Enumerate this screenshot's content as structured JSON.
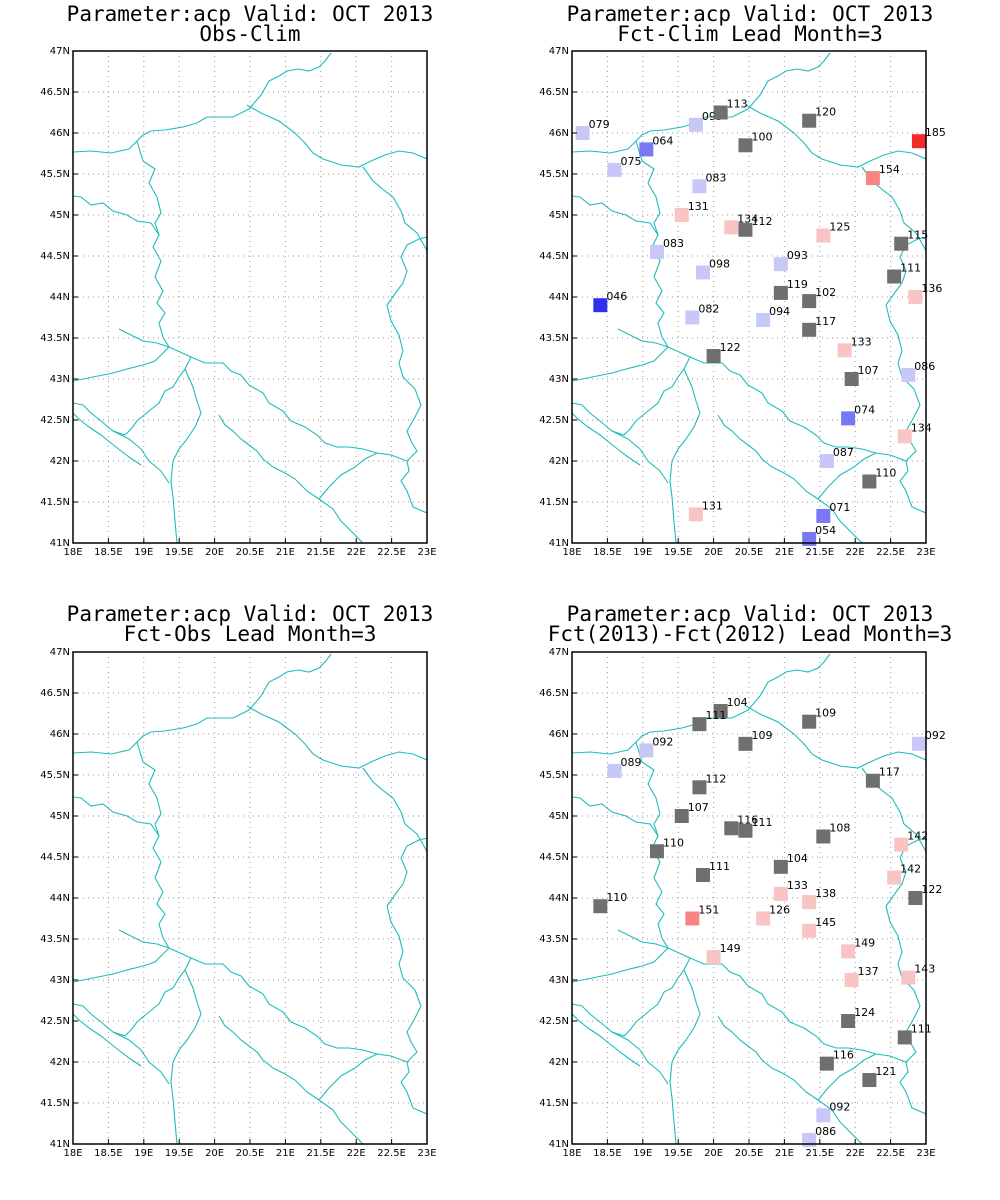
{
  "colors": {
    "border_line": "#1fbcbc",
    "grid": "#9a9a9a",
    "neutral": "#6f6f6f",
    "above_weak": "#f8c4c4",
    "above_mid": "#f88484",
    "above_strong": "#f42a2a",
    "below_weak": "#c8c8f8",
    "below_mid": "#7878f4",
    "below_strong": "#3030f0"
  },
  "axes": {
    "lon_ticks": [
      "18E",
      "18.5E",
      "19E",
      "19.5E",
      "20E",
      "20.5E",
      "21E",
      "21.5E",
      "22E",
      "22.5E",
      "23E"
    ],
    "lat_ticks": [
      "41N",
      "41.5N",
      "42N",
      "42.5N",
      "43N",
      "43.5N",
      "44N",
      "44.5N",
      "45N",
      "45.5N",
      "46N",
      "46.5N",
      "47N"
    ],
    "lon_range": [
      18,
      23
    ],
    "lat_range": [
      41,
      47
    ]
  },
  "panels": [
    {
      "id": "top-left",
      "title_line1": "Parameter:acp Valid: OCT 2013",
      "title_line2": "Obs-Clim",
      "stations": []
    },
    {
      "id": "top-right",
      "title_line1": "Parameter:acp Valid: OCT 2013",
      "title_line2": "Fct-Clim Lead Month=3",
      "stations": [
        {
          "lon": 18.15,
          "lat": 46.0,
          "label": "079",
          "cls": "below_weak"
        },
        {
          "lon": 18.6,
          "lat": 45.55,
          "label": "075",
          "cls": "below_weak"
        },
        {
          "lon": 19.05,
          "lat": 45.8,
          "label": "064",
          "cls": "below_mid"
        },
        {
          "lon": 19.75,
          "lat": 46.1,
          "label": "095",
          "cls": "below_weak"
        },
        {
          "lon": 20.1,
          "lat": 46.25,
          "label": "113",
          "cls": "neutral"
        },
        {
          "lon": 20.45,
          "lat": 45.85,
          "label": "100",
          "cls": "neutral"
        },
        {
          "lon": 21.35,
          "lat": 46.15,
          "label": "120",
          "cls": "neutral"
        },
        {
          "lon": 22.9,
          "lat": 45.9,
          "label": "185",
          "cls": "above_strong"
        },
        {
          "lon": 19.8,
          "lat": 45.35,
          "label": "083",
          "cls": "below_weak"
        },
        {
          "lon": 22.25,
          "lat": 45.45,
          "label": "154",
          "cls": "above_mid"
        },
        {
          "lon": 19.55,
          "lat": 45.0,
          "label": "131",
          "cls": "above_weak"
        },
        {
          "lon": 20.25,
          "lat": 44.85,
          "label": "134",
          "cls": "above_weak"
        },
        {
          "lon": 20.45,
          "lat": 44.82,
          "label": "112",
          "cls": "neutral"
        },
        {
          "lon": 21.55,
          "lat": 44.75,
          "label": "125",
          "cls": "above_weak"
        },
        {
          "lon": 22.65,
          "lat": 44.65,
          "label": "115",
          "cls": "neutral"
        },
        {
          "lon": 19.2,
          "lat": 44.55,
          "label": "083",
          "cls": "below_weak"
        },
        {
          "lon": 19.85,
          "lat": 44.3,
          "label": "098",
          "cls": "below_weak"
        },
        {
          "lon": 20.95,
          "lat": 44.4,
          "label": "093",
          "cls": "below_weak"
        },
        {
          "lon": 22.55,
          "lat": 44.25,
          "label": "111",
          "cls": "neutral"
        },
        {
          "lon": 20.95,
          "lat": 44.05,
          "label": "119",
          "cls": "neutral"
        },
        {
          "lon": 21.35,
          "lat": 43.95,
          "label": "102",
          "cls": "neutral"
        },
        {
          "lon": 22.85,
          "lat": 44.0,
          "label": "136",
          "cls": "above_weak"
        },
        {
          "lon": 18.4,
          "lat": 43.9,
          "label": "046",
          "cls": "below_strong"
        },
        {
          "lon": 19.7,
          "lat": 43.75,
          "label": "082",
          "cls": "below_weak"
        },
        {
          "lon": 20.7,
          "lat": 43.72,
          "label": "094",
          "cls": "below_weak"
        },
        {
          "lon": 21.35,
          "lat": 43.6,
          "label": "117",
          "cls": "neutral"
        },
        {
          "lon": 21.85,
          "lat": 43.35,
          "label": "133",
          "cls": "above_weak"
        },
        {
          "lon": 20.0,
          "lat": 43.28,
          "label": "122",
          "cls": "neutral"
        },
        {
          "lon": 21.95,
          "lat": 43.0,
          "label": "107",
          "cls": "neutral"
        },
        {
          "lon": 22.75,
          "lat": 43.05,
          "label": "086",
          "cls": "below_weak"
        },
        {
          "lon": 21.9,
          "lat": 42.52,
          "label": "074",
          "cls": "below_mid"
        },
        {
          "lon": 22.7,
          "lat": 42.3,
          "label": "134",
          "cls": "above_weak"
        },
        {
          "lon": 21.6,
          "lat": 42.0,
          "label": "087",
          "cls": "below_weak"
        },
        {
          "lon": 22.2,
          "lat": 41.75,
          "label": "110",
          "cls": "neutral"
        },
        {
          "lon": 19.75,
          "lat": 41.35,
          "label": "131",
          "cls": "above_weak"
        },
        {
          "lon": 21.55,
          "lat": 41.33,
          "label": "071",
          "cls": "below_mid"
        },
        {
          "lon": 21.35,
          "lat": 41.05,
          "label": "054",
          "cls": "below_mid"
        }
      ]
    },
    {
      "id": "bottom-left",
      "title_line1": "Parameter:acp Valid: OCT 2013",
      "title_line2": "Fct-Obs Lead Month=3",
      "stations": []
    },
    {
      "id": "bottom-right",
      "title_line1": "Parameter:acp Valid: OCT 2013",
      "title_line2": "Fct(2013)-Fct(2012) Lead Month=3",
      "stations": [
        {
          "lon": 20.1,
          "lat": 46.28,
          "label": "104",
          "cls": "neutral"
        },
        {
          "lon": 19.8,
          "lat": 46.12,
          "label": "111",
          "cls": "neutral"
        },
        {
          "lon": 21.35,
          "lat": 46.15,
          "label": "109",
          "cls": "neutral"
        },
        {
          "lon": 20.45,
          "lat": 45.88,
          "label": "109",
          "cls": "neutral"
        },
        {
          "lon": 22.9,
          "lat": 45.88,
          "label": "092",
          "cls": "below_weak"
        },
        {
          "lon": 19.05,
          "lat": 45.8,
          "label": "092",
          "cls": "below_weak"
        },
        {
          "lon": 18.6,
          "lat": 45.55,
          "label": "089",
          "cls": "below_weak"
        },
        {
          "lon": 22.25,
          "lat": 45.43,
          "label": "117",
          "cls": "neutral"
        },
        {
          "lon": 19.8,
          "lat": 45.35,
          "label": "112",
          "cls": "neutral"
        },
        {
          "lon": 19.55,
          "lat": 45.0,
          "label": "107",
          "cls": "neutral"
        },
        {
          "lon": 20.25,
          "lat": 44.85,
          "label": "116",
          "cls": "neutral"
        },
        {
          "lon": 20.45,
          "lat": 44.82,
          "label": "111",
          "cls": "neutral"
        },
        {
          "lon": 21.55,
          "lat": 44.75,
          "label": "108",
          "cls": "neutral"
        },
        {
          "lon": 22.65,
          "lat": 44.65,
          "label": "142",
          "cls": "above_weak"
        },
        {
          "lon": 19.2,
          "lat": 44.57,
          "label": "110",
          "cls": "neutral"
        },
        {
          "lon": 20.95,
          "lat": 44.38,
          "label": "104",
          "cls": "neutral"
        },
        {
          "lon": 19.85,
          "lat": 44.28,
          "label": "111",
          "cls": "neutral"
        },
        {
          "lon": 22.55,
          "lat": 44.25,
          "label": "142",
          "cls": "above_weak"
        },
        {
          "lon": 20.95,
          "lat": 44.05,
          "label": "133",
          "cls": "above_weak"
        },
        {
          "lon": 21.35,
          "lat": 43.95,
          "label": "138",
          "cls": "above_weak"
        },
        {
          "lon": 22.85,
          "lat": 44.0,
          "label": "122",
          "cls": "neutral"
        },
        {
          "lon": 18.4,
          "lat": 43.9,
          "label": "110",
          "cls": "neutral"
        },
        {
          "lon": 19.7,
          "lat": 43.75,
          "label": "151",
          "cls": "above_mid"
        },
        {
          "lon": 20.7,
          "lat": 43.75,
          "label": "126",
          "cls": "above_weak"
        },
        {
          "lon": 21.35,
          "lat": 43.6,
          "label": "145",
          "cls": "above_weak"
        },
        {
          "lon": 21.9,
          "lat": 43.35,
          "label": "149",
          "cls": "above_weak"
        },
        {
          "lon": 20.0,
          "lat": 43.28,
          "label": "149",
          "cls": "above_weak"
        },
        {
          "lon": 21.95,
          "lat": 43.0,
          "label": "137",
          "cls": "above_weak"
        },
        {
          "lon": 22.75,
          "lat": 43.03,
          "label": "143",
          "cls": "above_weak"
        },
        {
          "lon": 21.9,
          "lat": 42.5,
          "label": "124",
          "cls": "neutral"
        },
        {
          "lon": 22.7,
          "lat": 42.3,
          "label": "111",
          "cls": "neutral"
        },
        {
          "lon": 21.6,
          "lat": 41.98,
          "label": "116",
          "cls": "neutral"
        },
        {
          "lon": 22.2,
          "lat": 41.78,
          "label": "121",
          "cls": "neutral"
        },
        {
          "lon": 21.55,
          "lat": 41.35,
          "label": "092",
          "cls": "below_weak"
        },
        {
          "lon": 21.35,
          "lat": 41.05,
          "label": "086",
          "cls": "below_weak"
        }
      ]
    }
  ]
}
